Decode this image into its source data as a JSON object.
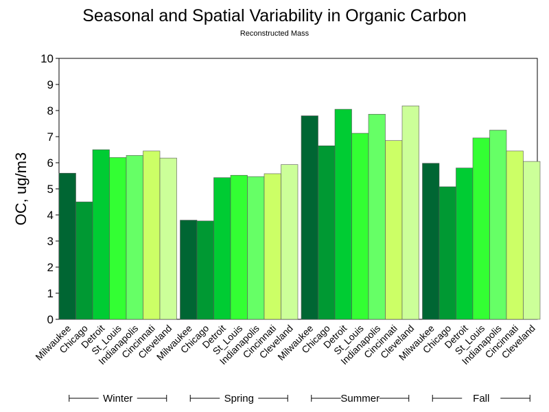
{
  "chart_data": {
    "type": "bar",
    "title": "Seasonal and Spatial Variability in Organic Carbon",
    "subtitle": "Reconstructed Mass",
    "ylabel": "OC,  ug/m3",
    "xlabel": "",
    "ylim": [
      0,
      10
    ],
    "yticks": [
      0,
      1,
      2,
      3,
      4,
      5,
      6,
      7,
      8,
      9,
      10
    ],
    "grid": false,
    "cities": [
      "Milwaukee",
      "Chicago",
      "Detroit",
      "St_Louis",
      "Indianapolis",
      "Cincinnati",
      "Cleveland"
    ],
    "colors": [
      "#006633",
      "#009933",
      "#00cc33",
      "#33ff33",
      "#66ff66",
      "#ccff66",
      "#ccff99"
    ],
    "groups": [
      {
        "name": "Winter",
        "values": [
          5.6,
          4.5,
          6.5,
          6.2,
          6.28,
          6.45,
          6.18
        ]
      },
      {
        "name": "Spring",
        "values": [
          3.8,
          3.77,
          5.43,
          5.52,
          5.47,
          5.58,
          5.93
        ]
      },
      {
        "name": "Summer",
        "values": [
          7.8,
          6.65,
          8.05,
          7.13,
          7.86,
          6.85,
          8.18
        ]
      },
      {
        "name": "Fall",
        "values": [
          5.98,
          5.08,
          5.8,
          6.95,
          7.25,
          6.45,
          6.05
        ]
      }
    ]
  }
}
